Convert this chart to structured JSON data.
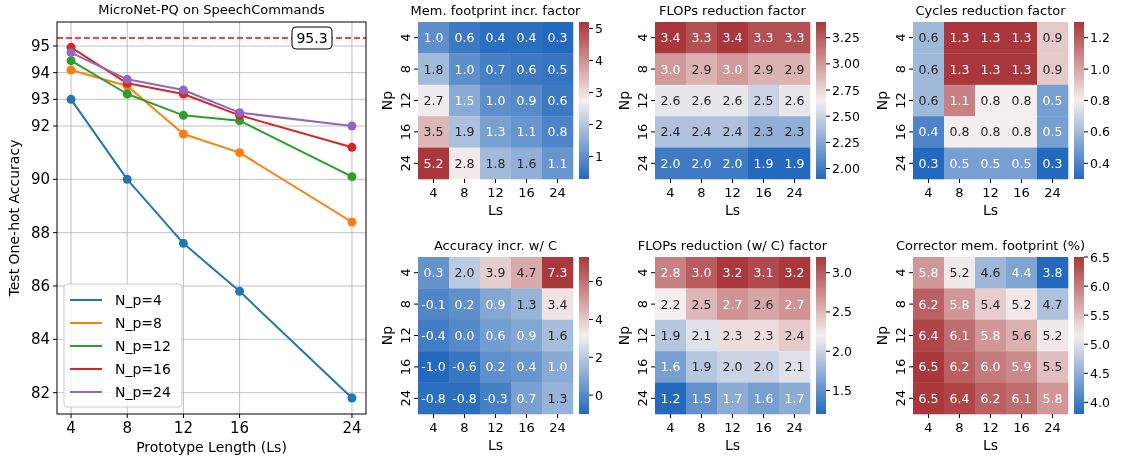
{
  "chart_data": [
    {
      "type": "line",
      "title": "MicroNet-PQ on SpeechCommands",
      "xlabel": "Prototype Length (Ls)",
      "ylabel": "Test One-hot Accuracy",
      "x": [
        4,
        8,
        12,
        16,
        24
      ],
      "xlim": [
        3,
        25
      ],
      "xticks": [
        4,
        8,
        12,
        16,
        24
      ],
      "ylim": [
        81.2,
        95.9
      ],
      "yticks": [
        82,
        84,
        86,
        88,
        90,
        92,
        93,
        94,
        95
      ],
      "grid": true,
      "legend": "bottom left",
      "marker": "circle",
      "ref_lines": [
        {
          "axis": "y",
          "value": 95.3,
          "label": "95.3",
          "color": "#ff0000",
          "line_style": "dashed"
        }
      ],
      "series": [
        {
          "name": "N_p=4",
          "color": "#1f77b4",
          "values": [
            93.0,
            90.0,
            87.6,
            85.8,
            81.8
          ]
        },
        {
          "name": "N_p=8",
          "color": "#ff7f0e",
          "values": [
            94.1,
            93.5,
            91.7,
            91.0,
            88.4
          ]
        },
        {
          "name": "N_p=12",
          "color": "#2ca02c",
          "values": [
            94.45,
            93.2,
            92.4,
            92.2,
            90.1
          ]
        },
        {
          "name": "N_p=16",
          "color": "#d62728",
          "values": [
            94.95,
            93.6,
            93.2,
            92.4,
            91.2
          ]
        },
        {
          "name": "N_p=24",
          "color": "#9467bd",
          "values": [
            94.75,
            93.75,
            93.35,
            92.5,
            92.0
          ]
        }
      ]
    },
    {
      "type": "heatmap",
      "title": "Mem. footprint incr. factor",
      "xlabel": "Ls",
      "ylabel": "Np",
      "categories": [
        "4",
        "8",
        "12",
        "16",
        "24"
      ],
      "y_categories": [
        "4",
        "8",
        "12",
        "16",
        "24"
      ],
      "clim": [
        0.3,
        5.2
      ],
      "cticks": [
        1,
        2,
        3,
        4,
        5
      ],
      "cells": [
        [
          1.0,
          0.6,
          0.4,
          0.4,
          0.3
        ],
        [
          1.8,
          1.0,
          0.7,
          0.6,
          0.5
        ],
        [
          2.7,
          1.5,
          1.0,
          0.9,
          0.6
        ],
        [
          3.5,
          1.9,
          1.3,
          1.1,
          0.8
        ],
        [
          5.2,
          2.8,
          1.8,
          1.6,
          1.1
        ]
      ],
      "cell_labels": [
        [
          "1.0",
          "0.6",
          "0.4",
          "0.4",
          "0.3"
        ],
        [
          "1.8",
          "1.0",
          "0.7",
          "0.6",
          "0.5"
        ],
        [
          "2.7",
          "1.5",
          "1.0",
          "0.9",
          "0.6"
        ],
        [
          "3.5",
          "1.9",
          "1.3",
          "1.1",
          "0.8"
        ],
        [
          "5.2",
          "2.8",
          "1.8",
          "1.6",
          "1.1"
        ]
      ]
    },
    {
      "type": "heatmap",
      "title": "FLOPs reduction factor",
      "xlabel": "Ls",
      "ylabel": "Np",
      "categories": [
        "4",
        "8",
        "12",
        "16",
        "24"
      ],
      "y_categories": [
        "4",
        "8",
        "12",
        "16",
        "24"
      ],
      "clim": [
        1.9,
        3.4
      ],
      "cticks": [
        {
          "value": 2,
          "label": "2.00"
        },
        2.25,
        {
          "value": 2.5,
          "label": "2.50"
        },
        2.75,
        {
          "value": 3,
          "label": "3.00"
        },
        3.25
      ],
      "cells": [
        [
          3.4,
          3.3,
          3.4,
          3.3,
          3.3
        ],
        [
          3.0,
          2.9,
          3.0,
          2.9,
          2.9
        ],
        [
          2.6,
          2.6,
          2.6,
          2.5,
          2.6
        ],
        [
          2.4,
          2.4,
          2.4,
          2.3,
          2.3
        ],
        [
          2.0,
          2.0,
          2.0,
          1.9,
          1.9
        ]
      ],
      "cell_labels": [
        [
          "3.4",
          "3.3",
          "3.4",
          "3.3",
          "3.3"
        ],
        [
          "3.0",
          "2.9",
          "3.0",
          "2.9",
          "2.9"
        ],
        [
          "2.6",
          "2.6",
          "2.6",
          "2.5",
          "2.6"
        ],
        [
          "2.4",
          "2.4",
          "2.4",
          "2.3",
          "2.3"
        ],
        [
          "2.0",
          "2.0",
          "2.0",
          "1.9",
          "1.9"
        ]
      ]
    },
    {
      "type": "heatmap",
      "title": "Cycles reduction factor",
      "xlabel": "Ls",
      "ylabel": "Np",
      "categories": [
        "4",
        "8",
        "12",
        "16",
        "24"
      ],
      "y_categories": [
        "4",
        "8",
        "12",
        "16",
        "24"
      ],
      "clim": [
        0.3,
        1.3
      ],
      "cticks": [
        0.4,
        0.6,
        0.8,
        {
          "value": 1,
          "label": "1.0"
        },
        1.2
      ],
      "cells": [
        [
          0.6,
          1.3,
          1.3,
          1.3,
          0.9
        ],
        [
          0.6,
          1.3,
          1.3,
          1.3,
          0.9
        ],
        [
          0.6,
          1.1,
          0.8,
          0.8,
          0.5
        ],
        [
          0.4,
          0.8,
          0.8,
          0.8,
          0.5
        ],
        [
          0.3,
          0.5,
          0.5,
          0.5,
          0.3
        ]
      ],
      "cell_labels": [
        [
          "0.6",
          "1.3",
          "1.3",
          "1.3",
          "0.9"
        ],
        [
          "0.6",
          "1.3",
          "1.3",
          "1.3",
          "0.9"
        ],
        [
          "0.6",
          "1.1",
          "0.8",
          "0.8",
          "0.5"
        ],
        [
          "0.4",
          "0.8",
          "0.8",
          "0.8",
          "0.5"
        ],
        [
          "0.3",
          "0.5",
          "0.5",
          "0.5",
          "0.3"
        ]
      ]
    },
    {
      "type": "heatmap",
      "title": "Accuracy incr. w/ C",
      "xlabel": "Ls",
      "ylabel": "Np",
      "categories": [
        "4",
        "8",
        "12",
        "16",
        "24"
      ],
      "y_categories": [
        "4",
        "8",
        "12",
        "16",
        "24"
      ],
      "clim": [
        -1.0,
        7.3
      ],
      "cticks": [
        0,
        2,
        4,
        6
      ],
      "cells": [
        [
          0.3,
          2.0,
          3.9,
          4.7,
          7.3
        ],
        [
          -0.1,
          0.2,
          0.9,
          1.3,
          3.4
        ],
        [
          -0.4,
          0.0,
          0.6,
          0.9,
          1.6
        ],
        [
          -1.0,
          -0.6,
          0.2,
          0.4,
          1.0
        ],
        [
          -0.8,
          -0.8,
          -0.3,
          0.7,
          1.3
        ]
      ],
      "cell_labels": [
        [
          "0.3",
          "2.0",
          "3.9",
          "4.7",
          "7.3"
        ],
        [
          "-0.1",
          "0.2",
          "0.9",
          "1.3",
          "3.4"
        ],
        [
          "-0.4",
          "0.0",
          "0.6",
          "0.9",
          "1.6"
        ],
        [
          "-1.0",
          "-0.6",
          "0.2",
          "0.4",
          "1.0"
        ],
        [
          "-0.8",
          "-0.8",
          "-0.3",
          "0.7",
          "1.3"
        ]
      ]
    },
    {
      "type": "heatmap",
      "title": "FLOPs reduction (w/ C) factor",
      "xlabel": "Ls",
      "ylabel": "Np",
      "categories": [
        "4",
        "8",
        "12",
        "16",
        "24"
      ],
      "y_categories": [
        "4",
        "8",
        "12",
        "16",
        "24"
      ],
      "clim": [
        1.2,
        3.2
      ],
      "cticks": [
        1.5,
        {
          "value": 2,
          "label": "2.0"
        },
        2.5,
        {
          "value": 3,
          "label": "3.0"
        }
      ],
      "cells": [
        [
          2.8,
          3.0,
          3.2,
          3.1,
          3.2
        ],
        [
          2.2,
          2.5,
          2.7,
          2.6,
          2.7
        ],
        [
          1.9,
          2.1,
          2.3,
          2.3,
          2.4
        ],
        [
          1.6,
          1.9,
          2.0,
          2.0,
          2.1
        ],
        [
          1.2,
          1.5,
          1.7,
          1.6,
          1.7
        ]
      ],
      "cell_labels": [
        [
          "2.8",
          "3.0",
          "3.2",
          "3.1",
          "3.2"
        ],
        [
          "2.2",
          "2.5",
          "2.7",
          "2.6",
          "2.7"
        ],
        [
          "1.9",
          "2.1",
          "2.3",
          "2.3",
          "2.4"
        ],
        [
          "1.6",
          "1.9",
          "2.0",
          "2.0",
          "2.1"
        ],
        [
          "1.2",
          "1.5",
          "1.7",
          "1.6",
          "1.7"
        ]
      ]
    },
    {
      "type": "heatmap",
      "title": "Corrector mem. footprint (%)",
      "xlabel": "Ls",
      "ylabel": "Np",
      "categories": [
        "4",
        "8",
        "12",
        "16",
        "24"
      ],
      "y_categories": [
        "4",
        "8",
        "12",
        "16",
        "24"
      ],
      "clim": [
        3.8,
        6.5
      ],
      "cticks": [
        {
          "value": 4,
          "label": "4.0"
        },
        4.5,
        {
          "value": 5,
          "label": "5.0"
        },
        5.5,
        {
          "value": 6,
          "label": "6.0"
        },
        6.5
      ],
      "cells": [
        [
          5.8,
          5.2,
          4.6,
          4.4,
          3.8
        ],
        [
          6.2,
          5.8,
          5.4,
          5.2,
          4.7
        ],
        [
          6.4,
          6.1,
          5.8,
          5.6,
          5.2
        ],
        [
          6.5,
          6.2,
          6.0,
          5.9,
          5.5
        ],
        [
          6.5,
          6.4,
          6.2,
          6.1,
          5.8
        ]
      ],
      "cell_labels": [
        [
          "5.8",
          "5.2",
          "4.6",
          "4.4",
          "3.8"
        ],
        [
          "6.2",
          "5.8",
          "5.4",
          "5.2",
          "4.7"
        ],
        [
          "6.4",
          "6.1",
          "5.8",
          "5.6",
          "5.2"
        ],
        [
          "6.5",
          "6.2",
          "6.0",
          "5.9",
          "5.5"
        ],
        [
          "6.5",
          "6.4",
          "6.2",
          "6.1",
          "5.8"
        ]
      ]
    }
  ]
}
